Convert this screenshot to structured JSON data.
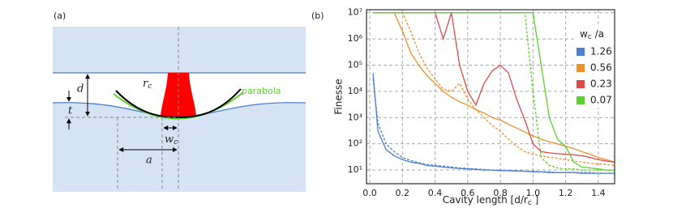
{
  "diagram": {
    "label": "(a)",
    "d": "d",
    "t": "t",
    "r_c": {
      "text": "r",
      "sub": "c"
    },
    "parabola": "parabola",
    "w_c": {
      "text": "w",
      "sub": "c"
    },
    "a": "a"
  },
  "chart_data": {
    "type": "line",
    "panel_label": "(b)",
    "ylabel": "Finesse",
    "xlabel": {
      "text": "Cavity length [d/r",
      "sub": "c",
      "end": " ]"
    },
    "legend_title": {
      "text": "w",
      "sub": "c",
      "end": " /a"
    },
    "log_y": true,
    "grid": true,
    "xlim": [
      -0.02,
      1.5
    ],
    "ylim": [
      3,
      13000000
    ],
    "xticks": [
      {
        "value": 0,
        "label": "0.0"
      },
      0.2,
      0.4,
      0.6,
      0.8,
      {
        "value": 1,
        "label": "1.0"
      },
      1.2,
      1.4
    ],
    "yticks": [
      {
        "value": 10,
        "label": "10¹"
      },
      {
        "value": 100,
        "label": "10²"
      },
      {
        "value": 1000,
        "label": "10³"
      },
      {
        "value": 10000,
        "label": "10⁴"
      },
      {
        "value": 100000,
        "label": "10⁵"
      },
      {
        "value": 1000000,
        "label": "10⁶"
      },
      {
        "value": 10000000,
        "label": "10⁷"
      }
    ],
    "x": [
      0.02,
      0.05,
      0.1,
      0.15,
      0.2,
      0.25,
      0.3,
      0.35,
      0.4,
      0.45,
      0.5,
      0.55,
      0.6,
      0.65,
      0.7,
      0.75,
      0.8,
      0.85,
      0.9,
      0.95,
      1.0,
      1.05,
      1.1,
      1.15,
      1.2,
      1.25,
      1.3,
      1.35,
      1.4,
      1.45,
      1.5
    ],
    "series": [
      {
        "name": "1.26",
        "color": "#4a7fd4",
        "values": [
          50000,
          300,
          60,
          35,
          25,
          20,
          18,
          15,
          14,
          13,
          12,
          11.5,
          11,
          10.5,
          10,
          10,
          9.5,
          9.5,
          9,
          9,
          8.5,
          8.5,
          8,
          8,
          8,
          8,
          7.5,
          7.5,
          7.5,
          7.5,
          7.5
        ],
        "dashed": [
          30000,
          600,
          100,
          50,
          30,
          23,
          19,
          16,
          15,
          14,
          13,
          12,
          11.5,
          11,
          10.5,
          10,
          10,
          9.5,
          9.5,
          9,
          9,
          8.5,
          8.5,
          8,
          8,
          8,
          8,
          8,
          7.5,
          7.5,
          7.5
        ]
      },
      {
        "name": "0.56",
        "color": "#f0902a",
        "values": [
          10000000,
          10000000,
          10000000,
          10000000,
          2000000,
          300000,
          100000,
          40000,
          20000,
          10000,
          6000,
          4000,
          3000,
          2000,
          1500,
          1000,
          800,
          550,
          400,
          280,
          200,
          150,
          120,
          100,
          80,
          65,
          50,
          40,
          30,
          25,
          20
        ],
        "dashed": [
          10000000,
          10000000,
          10000000,
          10000000,
          10000000,
          2000000,
          300000,
          80000,
          30000,
          12000,
          10000,
          20000,
          5000,
          2000,
          1000,
          500,
          300,
          150,
          80,
          50,
          40,
          35,
          30,
          28,
          25,
          22,
          20,
          18,
          17,
          16,
          15
        ]
      },
      {
        "name": "0.23",
        "color": "#e04848",
        "values": [
          10000000,
          10000000,
          10000000,
          10000000,
          10000000,
          10000000,
          10000000,
          10000000,
          10000000,
          1000000,
          10000000,
          100000,
          10000,
          3000,
          20000,
          60000,
          100000,
          50000,
          5000,
          800,
          100,
          50,
          45,
          42,
          40,
          38,
          35,
          30,
          25,
          22,
          20
        ]
      },
      {
        "name": "0.07",
        "color": "#5cd02c",
        "values": [
          10000000,
          10000000,
          10000000,
          10000000,
          10000000,
          10000000,
          10000000,
          10000000,
          10000000,
          10000000,
          10000000,
          10000000,
          10000000,
          10000000,
          10000000,
          10000000,
          10000000,
          10000000,
          10000000,
          10000000,
          10000000,
          100000,
          1000,
          150,
          80,
          20,
          13,
          12,
          11,
          10,
          10
        ],
        "dashed": [
          10000000,
          10000000,
          10000000,
          10000000,
          10000000,
          10000000,
          10000000,
          10000000,
          10000000,
          10000000,
          10000000,
          10000000,
          10000000,
          10000000,
          10000000,
          10000000,
          10000000,
          10000000,
          10000000,
          10000000,
          10000,
          30,
          15,
          12,
          11,
          11,
          10,
          10,
          10,
          10,
          10
        ]
      }
    ]
  }
}
